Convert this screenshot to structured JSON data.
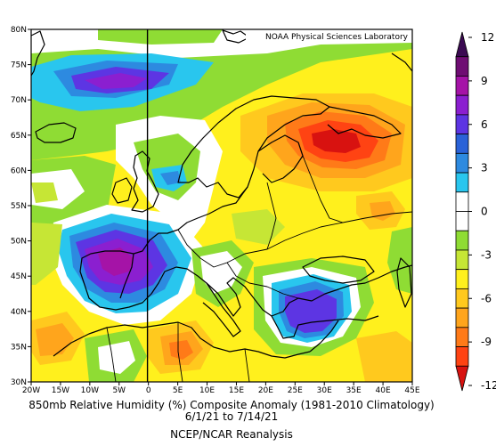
{
  "credit": "NOAA Physical Sciences Laboratory",
  "caption": {
    "line1": "850mb Relative Humidity (%) Composite Anomaly (1981-2010 Climatology)",
    "line2": "6/1/21  to 7/14/21",
    "line3": "NCEP/NCAR Reanalysis"
  },
  "map": {
    "lat_labels": [
      "80N",
      "75N",
      "70N",
      "65N",
      "60N",
      "55N",
      "50N",
      "45N",
      "40N",
      "35N",
      "30N"
    ],
    "lon_labels": [
      "20W",
      "15W",
      "10W",
      "5W",
      "0",
      "5E",
      "10E",
      "15E",
      "20E",
      "25E",
      "30E",
      "35E",
      "40E",
      "45E"
    ],
    "lat_range": [
      30,
      80
    ],
    "lon_range": [
      -20,
      45
    ]
  },
  "colorbar": {
    "labels": [
      "12",
      "9",
      "6",
      "3",
      "0",
      "-3",
      "-6",
      "-9",
      "-12"
    ],
    "colors": [
      "#3b0a52",
      "#6f0d73",
      "#a513a7",
      "#8b1fd0",
      "#5d35e3",
      "#2a62d8",
      "#2d8ae0",
      "#29c6ee",
      "#ffffff",
      "#ffffff",
      "#8fdc34",
      "#c6e635",
      "#fff01d",
      "#ffc91e",
      "#ffa51c",
      "#ff7a18",
      "#ff4313",
      "#d81210"
    ]
  },
  "colors": {
    "map_background": "#ffffff",
    "coast": "#000000"
  }
}
